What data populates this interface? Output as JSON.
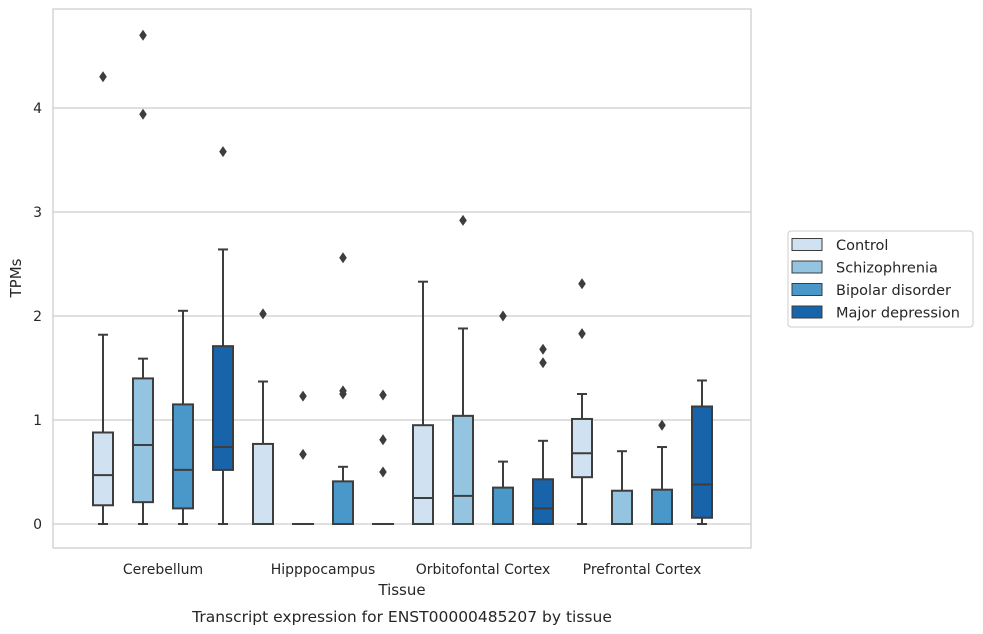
{
  "chart_data": {
    "type": "box",
    "xlabel": "Tissue",
    "ylabel": "TPMs",
    "caption": "Transcript expression for ENST00000485207 by tissue",
    "ylim": [
      -0.23,
      4.95
    ],
    "yticks": [
      0,
      1,
      2,
      3,
      4
    ],
    "grid": true,
    "legend_position": "right",
    "categories": [
      "Cerebellum",
      "Hipppocampus",
      "Orbitofontal Cortex",
      "Prefrontal Cortex"
    ],
    "series": [
      {
        "name": "Control",
        "color": "#d0e1f2",
        "boxes": [
          {
            "whislo": 0,
            "q1": 0.18,
            "med": 0.47,
            "q3": 0.88,
            "whishi": 1.82,
            "fliers": [
              4.3
            ]
          },
          {
            "whislo": 0,
            "q1": 0,
            "med": 0,
            "q3": 0.77,
            "whishi": 1.37,
            "fliers": [
              2.02
            ]
          },
          {
            "whislo": 0,
            "q1": 0,
            "med": 0.25,
            "q3": 0.95,
            "whishi": 2.33,
            "fliers": []
          },
          {
            "whislo": 0,
            "q1": 0.45,
            "med": 0.68,
            "q3": 1.01,
            "whishi": 1.25,
            "fliers": [
              1.83,
              2.31
            ]
          }
        ]
      },
      {
        "name": "Schizophrenia",
        "color": "#94c4df",
        "boxes": [
          {
            "whislo": 0,
            "q1": 0.21,
            "med": 0.76,
            "q3": 1.4,
            "whishi": 1.59,
            "fliers": [
              3.94,
              4.7
            ]
          },
          {
            "whislo": 0,
            "q1": 0,
            "med": 0,
            "q3": 0,
            "whishi": 0,
            "fliers": [
              0.67,
              1.23
            ]
          },
          {
            "whislo": 0,
            "q1": 0,
            "med": 0.27,
            "q3": 1.04,
            "whishi": 1.88,
            "fliers": [
              2.92
            ]
          },
          {
            "whislo": 0,
            "q1": 0,
            "med": 0,
            "q3": 0.32,
            "whishi": 0.7,
            "fliers": []
          }
        ]
      },
      {
        "name": "Bipolar disorder",
        "color": "#4a98c9",
        "boxes": [
          {
            "whislo": 0,
            "q1": 0.15,
            "med": 0.52,
            "q3": 1.15,
            "whishi": 2.05,
            "fliers": []
          },
          {
            "whislo": 0,
            "q1": 0,
            "med": 0,
            "q3": 0.41,
            "whishi": 0.55,
            "fliers": [
              1.25,
              1.28,
              2.56
            ]
          },
          {
            "whislo": 0,
            "q1": 0,
            "med": 0,
            "q3": 0.35,
            "whishi": 0.6,
            "fliers": [
              2.0
            ]
          },
          {
            "whislo": 0,
            "q1": 0,
            "med": 0,
            "q3": 0.33,
            "whishi": 0.74,
            "fliers": [
              0.95
            ]
          }
        ]
      },
      {
        "name": "Major depression",
        "color": "#1764ab",
        "boxes": [
          {
            "whislo": 0,
            "q1": 0.52,
            "med": 0.74,
            "q3": 1.71,
            "whishi": 2.64,
            "fliers": [
              3.58
            ]
          },
          {
            "whislo": 0,
            "q1": 0,
            "med": 0,
            "q3": 0,
            "whishi": 0,
            "fliers": [
              0.5,
              0.81,
              1.24
            ]
          },
          {
            "whislo": 0,
            "q1": 0,
            "med": 0.15,
            "q3": 0.43,
            "whishi": 0.8,
            "fliers": [
              1.55,
              1.68
            ]
          },
          {
            "whislo": 0,
            "q1": 0.06,
            "med": 0.38,
            "q3": 1.13,
            "whishi": 1.38,
            "fliers": []
          }
        ]
      }
    ]
  }
}
